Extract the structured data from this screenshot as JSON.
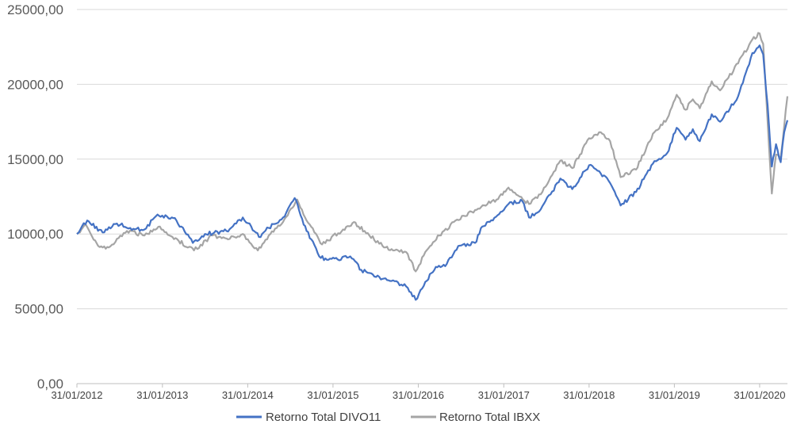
{
  "chart_data": {
    "type": "line",
    "title": "",
    "xlabel": "",
    "ylabel": "",
    "ylim": [
      0,
      25000
    ],
    "xlim": [
      "2012-01-31",
      "2020-05-29"
    ],
    "yticks": [
      "0,00",
      "5000,00",
      "10000,00",
      "15000,00",
      "20000,00",
      "25000,00"
    ],
    "yticks_values": [
      0,
      5000,
      10000,
      15000,
      20000,
      25000
    ],
    "xticks": [
      "31/01/2012",
      "31/01/2013",
      "31/01/2014",
      "31/01/2015",
      "31/01/2016",
      "31/01/2017",
      "31/01/2018",
      "31/01/2019",
      "31/01/2020"
    ],
    "xticks_dates": [
      "2012-01-31",
      "2013-01-31",
      "2014-01-31",
      "2015-01-31",
      "2016-01-31",
      "2017-01-31",
      "2018-01-31",
      "2019-01-31",
      "2020-01-31"
    ],
    "grid": "horizontal",
    "legend_position": "bottom",
    "series": [
      {
        "name": "Retorno Total DIVO11",
        "color": "#4472C4",
        "points": [
          [
            "2012-01-31",
            10000
          ],
          [
            "2012-03-15",
            10900
          ],
          [
            "2012-05-20",
            10100
          ],
          [
            "2012-07-20",
            10700
          ],
          [
            "2012-09-15",
            10400
          ],
          [
            "2012-11-15",
            10300
          ],
          [
            "2013-01-10",
            11300
          ],
          [
            "2013-04-01",
            10900
          ],
          [
            "2013-06-10",
            9400
          ],
          [
            "2013-08-01",
            10000
          ],
          [
            "2013-11-01",
            10200
          ],
          [
            "2014-01-10",
            11100
          ],
          [
            "2014-02-15",
            10500
          ],
          [
            "2014-03-20",
            9800
          ],
          [
            "2014-05-01",
            10400
          ],
          [
            "2014-07-01",
            11100
          ],
          [
            "2014-08-20",
            12400
          ],
          [
            "2014-10-10",
            10200
          ],
          [
            "2014-12-10",
            8400
          ],
          [
            "2015-02-20",
            8300
          ],
          [
            "2015-04-15",
            8500
          ],
          [
            "2015-06-01",
            7600
          ],
          [
            "2015-07-20",
            7300
          ],
          [
            "2015-08-31",
            7000
          ],
          [
            "2015-10-15",
            6900
          ],
          [
            "2015-12-10",
            6500
          ],
          [
            "2016-01-20",
            5600
          ],
          [
            "2016-03-01",
            6800
          ],
          [
            "2016-04-15",
            7800
          ],
          [
            "2016-06-01",
            8000
          ],
          [
            "2016-07-20",
            9200
          ],
          [
            "2016-09-30",
            9400
          ],
          [
            "2016-10-31",
            10500
          ],
          [
            "2016-12-15",
            10900
          ],
          [
            "2017-02-20",
            12000
          ],
          [
            "2017-04-20",
            12200
          ],
          [
            "2017-05-19",
            11100
          ],
          [
            "2017-07-01",
            11500
          ],
          [
            "2017-09-30",
            13700
          ],
          [
            "2017-11-20",
            13000
          ],
          [
            "2018-01-31",
            14600
          ],
          [
            "2018-03-15",
            14200
          ],
          [
            "2018-05-01",
            13400
          ],
          [
            "2018-06-15",
            11900
          ],
          [
            "2018-08-20",
            12800
          ],
          [
            "2018-10-31",
            14700
          ],
          [
            "2018-12-31",
            15400
          ],
          [
            "2019-02-10",
            17100
          ],
          [
            "2019-03-20",
            16300
          ],
          [
            "2019-04-20",
            17000
          ],
          [
            "2019-05-20",
            16200
          ],
          [
            "2019-07-10",
            18000
          ],
          [
            "2019-08-15",
            17500
          ],
          [
            "2019-10-31",
            19200
          ],
          [
            "2019-12-31",
            22100
          ],
          [
            "2020-01-31",
            22600
          ],
          [
            "2020-02-15",
            22000
          ],
          [
            "2020-03-05",
            18600
          ],
          [
            "2020-03-23",
            14500
          ],
          [
            "2020-04-10",
            16000
          ],
          [
            "2020-04-30",
            14800
          ],
          [
            "2020-05-15",
            16800
          ],
          [
            "2020-05-29",
            17600
          ]
        ]
      },
      {
        "name": "Retorno Total IBXX",
        "color": "#A5A5A5",
        "points": [
          [
            "2012-01-31",
            10000
          ],
          [
            "2012-03-10",
            10600
          ],
          [
            "2012-05-01",
            9200
          ],
          [
            "2012-06-15",
            9100
          ],
          [
            "2012-09-01",
            10200
          ],
          [
            "2012-11-15",
            9900
          ],
          [
            "2013-01-20",
            10500
          ],
          [
            "2013-03-15",
            9800
          ],
          [
            "2013-06-15",
            8900
          ],
          [
            "2013-09-01",
            9900
          ],
          [
            "2013-11-01",
            9700
          ],
          [
            "2014-01-10",
            10000
          ],
          [
            "2014-03-15",
            8900
          ],
          [
            "2014-05-01",
            9900
          ],
          [
            "2014-07-01",
            10800
          ],
          [
            "2014-08-31",
            12300
          ],
          [
            "2014-10-10",
            10900
          ],
          [
            "2014-12-15",
            9300
          ],
          [
            "2015-03-15",
            10300
          ],
          [
            "2015-05-01",
            10800
          ],
          [
            "2015-06-15",
            10200
          ],
          [
            "2015-08-31",
            9200
          ],
          [
            "2015-10-15",
            8900
          ],
          [
            "2015-12-10",
            8800
          ],
          [
            "2016-01-20",
            7500
          ],
          [
            "2016-03-01",
            8800
          ],
          [
            "2016-04-30",
            9900
          ],
          [
            "2016-07-01",
            10800
          ],
          [
            "2016-09-30",
            11600
          ],
          [
            "2016-12-31",
            12300
          ],
          [
            "2017-02-20",
            13100
          ],
          [
            "2017-05-19",
            12000
          ],
          [
            "2017-07-15",
            12800
          ],
          [
            "2017-09-30",
            14900
          ],
          [
            "2017-11-20",
            14400
          ],
          [
            "2018-01-31",
            16400
          ],
          [
            "2018-03-15",
            16800
          ],
          [
            "2018-05-01",
            16200
          ],
          [
            "2018-06-15",
            13800
          ],
          [
            "2018-08-20",
            14300
          ],
          [
            "2018-10-31",
            16700
          ],
          [
            "2018-12-31",
            17700
          ],
          [
            "2019-02-10",
            19300
          ],
          [
            "2019-03-20",
            18300
          ],
          [
            "2019-04-20",
            19000
          ],
          [
            "2019-05-20",
            18400
          ],
          [
            "2019-07-10",
            20200
          ],
          [
            "2019-08-15",
            19600
          ],
          [
            "2019-10-31",
            21400
          ],
          [
            "2019-12-31",
            23000
          ],
          [
            "2020-01-31",
            23400
          ],
          [
            "2020-02-15",
            22700
          ],
          [
            "2020-03-05",
            17500
          ],
          [
            "2020-03-23",
            12700
          ],
          [
            "2020-04-10",
            15300
          ],
          [
            "2020-04-30",
            15100
          ],
          [
            "2020-05-15",
            17200
          ],
          [
            "2020-05-29",
            19200
          ]
        ]
      }
    ]
  }
}
